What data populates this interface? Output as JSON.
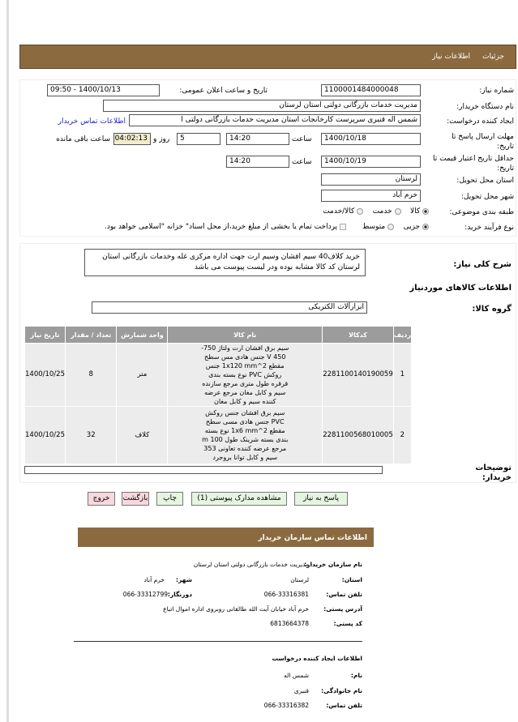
{
  "header": {
    "tabs": [
      "جزئیات",
      "اطلاعات نیاز"
    ]
  },
  "form": {
    "need_number_label": "شماره نیاز:",
    "need_number": "1100001484000048",
    "announce_label": "تاریخ و ساعت اعلان عمومی:",
    "announce_value": "1400/10/13 - 09:50",
    "buyer_org_label": "نام دستگاه خریدار:",
    "buyer_org": "مدیریت خدمات بازرگانی دولتی استان لرستان",
    "creator_label": "ایجاد کننده درخواست:",
    "creator": "شمس اله قنبری سرپرست کارخانجات استان مدیریت خدمات بازرگانی دولتی ا",
    "buyer_contact_link": "اطلاعات تماس خریدار",
    "deadline_label": "مهلت ارسال پاسخ تا تاریخ:",
    "deadline_date": "1400/10/18",
    "time_label": "ساعت",
    "deadline_time": "14:20",
    "days": "5",
    "days_label": "روز و",
    "remaining": "04:02:13",
    "remaining_label": "ساعت باقی مانده",
    "validity_label": "حداقل تاریخ اعتبار قیمت تا تاریخ:",
    "validity_date": "1400/10/19",
    "validity_time": "14:20",
    "province_label": "استان محل تحویل:",
    "province": "لرستان",
    "city_label": "شهر محل تحویل:",
    "city": "خرم آباد",
    "category_label": "طبقه بندی موضوعی:",
    "category_options": [
      "کالا",
      "خدمت",
      "کالا/خدمت"
    ],
    "category_selected": "کالا",
    "process_label": "نوع فرآیند خرید:",
    "process_options": [
      "جزیی",
      "متوسط"
    ],
    "process_selected": "جزیی",
    "payment_note": "پرداخت تمام یا بخشی از مبلغ خرید،از محل اسناد\" خزانه \"اسلامی خواهد بود."
  },
  "details": {
    "summary_label": "شرح کلی نیاز:",
    "summary": "خرید کلاف40 سیم افشان وسیم ارت جهت اداره مرکزی غله وخدمات  بازرگانی استان لرستان کد کالا مشابه بوده ودر لیست پیوست می باشد",
    "goods_title": "اطلاعات کالاهای موردنیاز",
    "group_label": "گروه کالا:",
    "group": "ابزارآلات الکتریکی",
    "columns": [
      "ردیف",
      "کدکالا",
      "نام کالا",
      "واحد شمارش",
      "تعداد / مقدار",
      "تاریخ نیاز"
    ],
    "rows": [
      {
        "n": "1",
        "code": "2281100140190059",
        "name": "سیم برق افشان ارت ولتاژ 750-450 V جنس هادی مس سطح مقطع 1x120 mm^2 جنس روکش PVC نوع بسته بندی قرقره طول متری مرجع سازنده سیم و کابل مغان مرجع عرضه کننده سیم و کابل مغان",
        "unit": "متر",
        "qty": "8",
        "date": "1400/10/25"
      },
      {
        "n": "2",
        "code": "2281100568010005",
        "name": "سیم برق افشان جنس روکش PVC جنس هادی مسی سطح مقطع 1x6 mm^2 نوع بسته بندی بسته شرینک طول m 100 مرجع عرضه کننده تعاونی 353 سیم و کابل توانا بروجرد",
        "unit": "کلاف",
        "qty": "32",
        "date": "1400/10/25"
      }
    ],
    "notes_label": "توضیحات خریدار:",
    "notes": ""
  },
  "buttons": {
    "reply": "پاسخ به نیاز",
    "attachments": "مشاهده مدارک پیوستی (1)",
    "print": "چاپ",
    "back": "بازگشت",
    "exit": "خروج"
  },
  "contact": {
    "title": "اطلاعات تماس سازمان خریدار",
    "org_label": "نام سازمان خریدار:",
    "org": "مدیریت خدمات بازرگانی دولتی استان لرستان",
    "province_label": "استان:",
    "province": "لرستان",
    "city_label": "شهر:",
    "city": "خرم آباد",
    "phone_label": "تلفن تماس:",
    "phone": "066-33316381",
    "fax_label": "دورنگار:",
    "fax": "066-33312799",
    "address_label": "آدرس پستی:",
    "address": "خرم آباد خیابان آیت الله طالقانی روبروی اداره اموال اتباع",
    "postal_label": "کد پستی:",
    "postal": "6813664378",
    "creator_title": "اطلاعات ایجاد کننده درخواست",
    "name_label": "نام:",
    "name": "شمس اله",
    "family_label": "نام خانوادگی:",
    "family": "قنبری",
    "creator_phone_label": "تلفن تماس:",
    "creator_phone": "066-33316382"
  }
}
